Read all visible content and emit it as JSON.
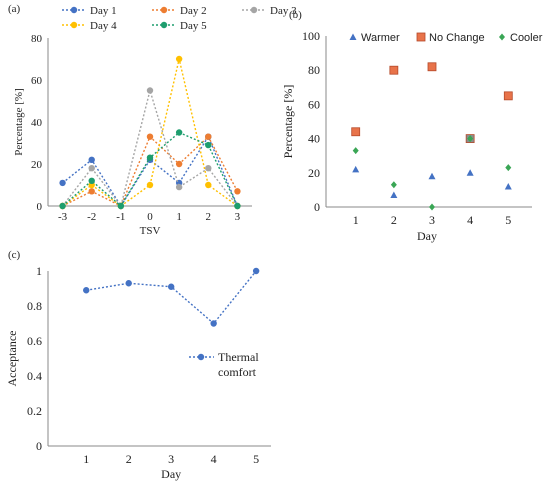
{
  "chart_data": [
    {
      "panel": "(a)",
      "type": "line",
      "xlabel": "TSV",
      "ylabel": "Percentage [%]",
      "categories": [
        "-3",
        "-2",
        "-1",
        "0",
        "1",
        "2",
        "3"
      ],
      "ylim": [
        0,
        80
      ],
      "yticks": [
        "0",
        "20",
        "40",
        "60",
        "80"
      ],
      "grid": false,
      "legend_position": "top",
      "series": [
        {
          "name": "Day 1",
          "color": "#4472c4",
          "values": [
            11,
            22,
            0,
            22,
            11,
            33,
            0
          ]
        },
        {
          "name": "Day 2",
          "color": "#ed7d31",
          "values": [
            0,
            7,
            0,
            33,
            20,
            33,
            7
          ]
        },
        {
          "name": "Day 3",
          "color": "#a5a5a5",
          "values": [
            0,
            18,
            0,
            55,
            9,
            18,
            0
          ]
        },
        {
          "name": "Day 4",
          "color": "#ffc000",
          "values": [
            0,
            10,
            0,
            10,
            70,
            10,
            0
          ]
        },
        {
          "name": "Day 5",
          "color": "#1e9e6e",
          "values": [
            0,
            12,
            0,
            23,
            35,
            29,
            0
          ]
        }
      ]
    },
    {
      "panel": "(b)",
      "type": "scatter",
      "xlabel": "Day",
      "ylabel": "Percentage [%]",
      "x": [
        1,
        2,
        3,
        4,
        5
      ],
      "xticks": [
        "1",
        "2",
        "3",
        "4",
        "5"
      ],
      "ylim": [
        0,
        100
      ],
      "yticks": [
        "0",
        "20",
        "40",
        "60",
        "80",
        "100"
      ],
      "grid": false,
      "legend_position": "top",
      "series": [
        {
          "name": "Warmer",
          "marker": "triangle",
          "color": "#4472c4",
          "values": [
            22,
            7,
            18,
            20,
            12
          ]
        },
        {
          "name": "No Change",
          "marker": "square",
          "color": "#e8734a",
          "values": [
            44,
            80,
            82,
            40,
            65
          ]
        },
        {
          "name": "Cooler",
          "marker": "diamond",
          "color": "#3aa655",
          "values": [
            33,
            13,
            0,
            40,
            23
          ]
        }
      ]
    },
    {
      "panel": "(c)",
      "type": "line",
      "xlabel": "Day",
      "ylabel": "Acceptance",
      "x": [
        1,
        2,
        3,
        4,
        5
      ],
      "xticks": [
        "1",
        "2",
        "3",
        "4",
        "5"
      ],
      "ylim": [
        0,
        1
      ],
      "yticks": [
        "0",
        "0.2",
        "0.4",
        "0.6",
        "0.8",
        "1"
      ],
      "grid": false,
      "legend_position": "right",
      "series": [
        {
          "name": "Thermal comfort",
          "legend_lines": [
            "Thermal",
            "comfort"
          ],
          "color": "#4472c4",
          "values": [
            0.89,
            0.93,
            0.91,
            0.7,
            1.0
          ]
        }
      ]
    }
  ]
}
